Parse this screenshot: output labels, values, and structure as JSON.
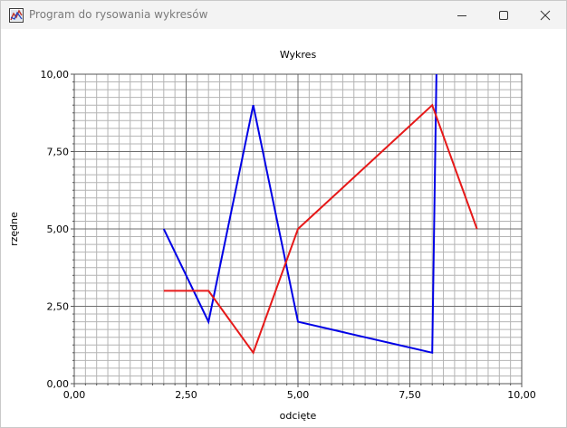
{
  "window": {
    "title": "Program do rysowania wykresów",
    "icon": "chart-app-icon",
    "controls": {
      "minimize": "minimize-icon",
      "maximize": "maximize-icon",
      "close": "close-icon"
    }
  },
  "chart_data": {
    "type": "line",
    "title": "Wykres",
    "xlabel": "odcięte",
    "ylabel": "rzędne",
    "xlim": [
      0,
      10
    ],
    "ylim": [
      0,
      10
    ],
    "xticks": [
      "0,00",
      "2,50",
      "5,00",
      "7,50",
      "10,00"
    ],
    "yticks": [
      "0,00",
      "2,50",
      "5,00",
      "7,50",
      "10,00"
    ],
    "grid": true,
    "legend": "none",
    "series": [
      {
        "color": "#0000e6",
        "x": [
          2,
          3,
          4,
          5,
          8,
          8.1
        ],
        "y": [
          5,
          2,
          9,
          2,
          1,
          10.5
        ]
      },
      {
        "color": "#e61919",
        "x": [
          2,
          3,
          4,
          5,
          8,
          9
        ],
        "y": [
          3,
          3,
          1,
          5,
          9,
          5
        ]
      }
    ]
  }
}
